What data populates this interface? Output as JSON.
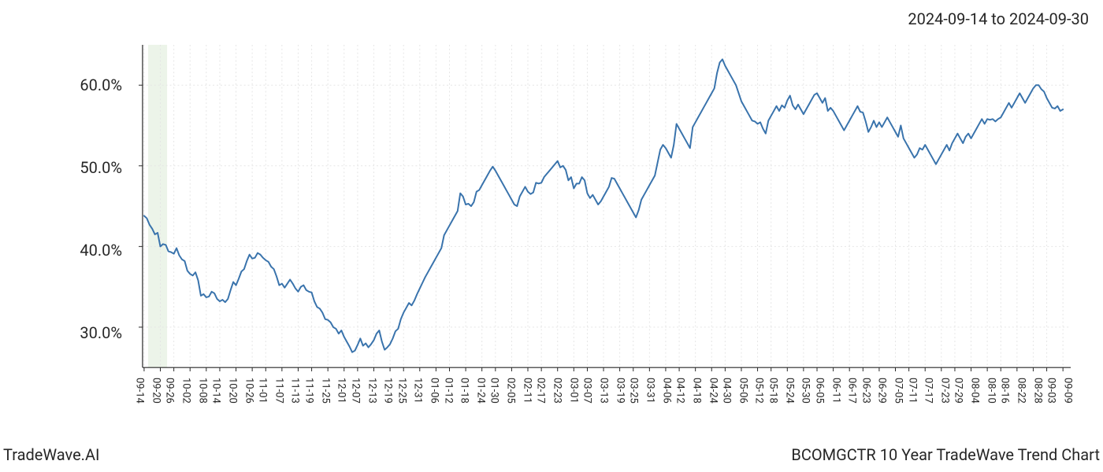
{
  "header": {
    "date_range": "2024-09-14 to 2024-09-30"
  },
  "footer": {
    "brand": "TradeWave.AI",
    "title": "BCOMGCTR 10 Year TradeWave Trend Chart"
  },
  "chart": {
    "type": "line",
    "background_color": "#ffffff",
    "line_color": "#3973ac",
    "line_width": 2,
    "grid_color": "#e5e5e5",
    "grid_dash": "2,3",
    "axis_color": "#262626",
    "highlight_band": {
      "color": "#d9ead3",
      "opacity": 0.5,
      "x_start_index": 2,
      "x_end_index": 8
    },
    "ylim": [
      25,
      65
    ],
    "y_ticks": [
      {
        "value": 30,
        "label": "30.0%"
      },
      {
        "value": 40,
        "label": "40.0%"
      },
      {
        "value": 50,
        "label": "50.0%"
      },
      {
        "value": 60,
        "label": "60.0%"
      }
    ],
    "y_label_fontsize": 20,
    "x_labels": [
      "09-14",
      "09-20",
      "09-26",
      "10-02",
      "10-08",
      "10-14",
      "10-20",
      "10-26",
      "11-01",
      "11-07",
      "11-13",
      "11-19",
      "11-25",
      "12-01",
      "12-07",
      "12-13",
      "12-19",
      "12-25",
      "12-31",
      "01-06",
      "01-12",
      "01-18",
      "01-24",
      "01-30",
      "02-05",
      "02-11",
      "02-17",
      "02-23",
      "03-01",
      "03-07",
      "03-13",
      "03-19",
      "03-25",
      "03-31",
      "04-06",
      "04-12",
      "04-18",
      "04-24",
      "04-30",
      "05-06",
      "05-12",
      "05-18",
      "05-24",
      "05-30",
      "06-05",
      "06-11",
      "06-17",
      "06-23",
      "06-29",
      "07-05",
      "07-11",
      "07-17",
      "07-23",
      "07-29",
      "08-04",
      "08-10",
      "08-16",
      "08-22",
      "08-28",
      "09-03",
      "09-09"
    ],
    "x_label_fontsize": 13,
    "x_label_rotation": 90,
    "values": [
      43.8,
      43.5,
      42.7,
      42.2,
      41.5,
      41.7,
      40.0,
      40.3,
      40.2,
      39.4,
      39.3,
      39.1,
      39.8,
      38.9,
      38.4,
      38.2,
      37.0,
      36.6,
      36.4,
      36.8,
      35.8,
      33.9,
      34.1,
      33.7,
      33.8,
      34.4,
      34.2,
      33.5,
      33.2,
      33.4,
      33.1,
      33.5,
      34.6,
      35.6,
      35.2,
      36.0,
      36.9,
      37.2,
      38.2,
      39.0,
      38.5,
      38.6,
      39.2,
      39.0,
      38.6,
      38.3,
      38.1,
      37.5,
      37.2,
      36.3,
      35.2,
      35.4,
      34.9,
      35.4,
      35.9,
      35.4,
      34.8,
      34.4,
      35.0,
      35.2,
      34.6,
      34.4,
      34.3,
      33.2,
      32.5,
      32.3,
      31.8,
      31.0,
      30.9,
      30.6,
      30.0,
      29.8,
      29.2,
      29.6,
      28.8,
      28.2,
      27.6,
      26.9,
      27.1,
      27.8,
      28.6,
      27.7,
      28.0,
      27.5,
      27.9,
      28.4,
      29.2,
      29.6,
      28.2,
      27.2,
      27.5,
      27.9,
      28.6,
      29.5,
      29.8,
      31.0,
      31.8,
      32.4,
      33.0,
      32.7,
      33.3,
      34.1,
      34.8,
      35.5,
      36.2,
      36.8,
      37.4,
      38.0,
      38.6,
      39.2,
      39.8,
      41.4,
      42.0,
      42.6,
      43.2,
      43.8,
      44.4,
      46.6,
      46.2,
      45.2,
      45.3,
      45.0,
      45.5,
      46.8,
      47.0,
      47.6,
      48.2,
      48.8,
      49.4,
      49.9,
      49.4,
      48.8,
      48.2,
      47.6,
      47.0,
      46.4,
      45.8,
      45.2,
      45.0,
      46.2,
      46.8,
      47.4,
      46.8,
      46.5,
      46.7,
      47.9,
      47.8,
      47.9,
      48.6,
      49.0,
      49.4,
      49.8,
      50.2,
      50.6,
      49.8,
      50.0,
      49.5,
      48.2,
      48.6,
      47.2,
      47.8,
      47.8,
      48.6,
      48.2,
      46.6,
      46.0,
      46.4,
      45.8,
      45.2,
      45.6,
      46.2,
      46.8,
      47.4,
      48.5,
      48.4,
      47.8,
      47.2,
      46.6,
      46.0,
      45.4,
      44.8,
      44.2,
      43.6,
      44.5,
      45.8,
      46.4,
      47.0,
      47.6,
      48.2,
      48.8,
      50.4,
      52.0,
      52.6,
      52.2,
      51.6,
      51.0,
      52.6,
      55.2,
      54.6,
      54.0,
      53.4,
      52.8,
      52.2,
      54.8,
      55.4,
      56.0,
      56.6,
      57.2,
      57.8,
      58.4,
      59.0,
      59.6,
      61.5,
      62.8,
      63.2,
      62.4,
      61.8,
      61.2,
      60.6,
      60.0,
      59.0,
      58.0,
      57.4,
      56.8,
      56.2,
      55.6,
      55.5,
      55.2,
      55.4,
      54.6,
      54.0,
      55.6,
      56.2,
      56.8,
      57.4,
      56.8,
      57.5,
      57.2,
      58.1,
      58.7,
      57.5,
      57.0,
      57.6,
      57.0,
      56.4,
      57.0,
      57.6,
      58.2,
      58.8,
      59.0,
      58.4,
      57.8,
      58.4,
      56.8,
      57.2,
      56.8,
      56.2,
      55.6,
      55.0,
      54.4,
      55.0,
      55.6,
      56.2,
      56.8,
      57.4,
      56.7,
      56.6,
      55.5,
      54.2,
      54.8,
      55.6,
      54.8,
      55.4,
      54.8,
      55.4,
      56.0,
      55.4,
      54.8,
      54.2,
      53.6,
      55.0,
      53.4,
      52.8,
      52.2,
      51.6,
      51.0,
      51.4,
      52.2,
      52.0,
      52.6,
      52.0,
      51.4,
      50.8,
      50.2,
      50.8,
      51.4,
      52.0,
      52.6,
      51.9,
      52.8,
      53.4,
      54.0,
      53.4,
      52.8,
      53.6,
      54.0,
      53.4,
      54.0,
      54.6,
      55.2,
      55.8,
      55.2,
      55.8,
      55.7,
      55.8,
      55.5,
      55.8,
      56.0,
      56.6,
      57.2,
      57.8,
      57.2,
      57.8,
      58.4,
      59.0,
      58.4,
      57.8,
      58.4,
      59.0,
      59.6,
      60.0,
      60.0,
      59.5,
      59.2,
      58.4,
      57.8,
      57.2,
      57.1,
      57.4,
      56.8,
      57.0
    ]
  }
}
